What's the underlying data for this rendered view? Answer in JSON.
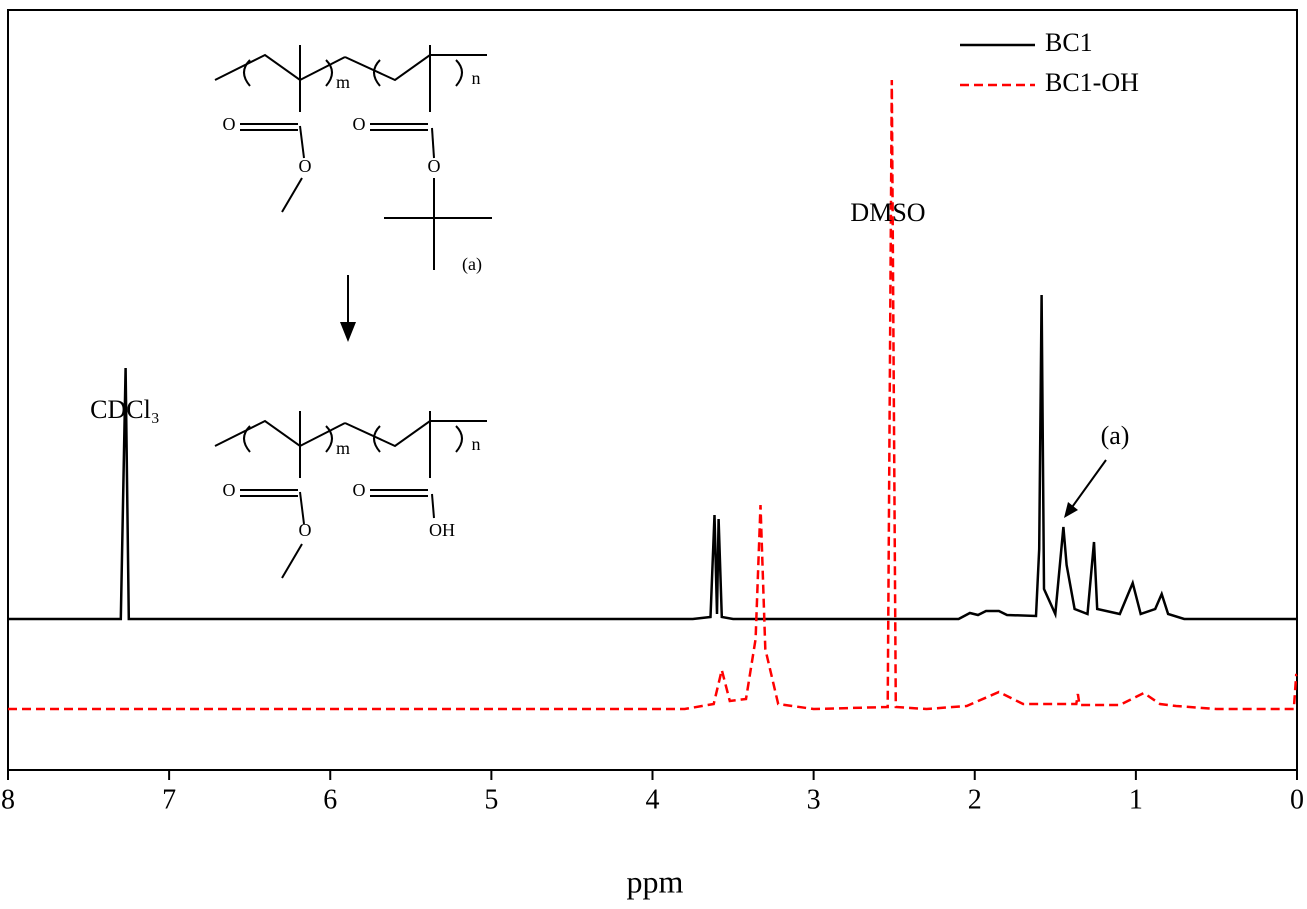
{
  "chart_data": {
    "type": "line",
    "x_label": "ppm",
    "xlim": [
      8,
      0
    ],
    "xticks": [
      0,
      1,
      2,
      3,
      4,
      5,
      6,
      7,
      8
    ],
    "ylim": [
      -1.51,
      6.09
    ],
    "legend": "top-right",
    "series": [
      {
        "name": "BC1",
        "color": "#000000",
        "dash": "solid",
        "x": [
          8.0,
          7.3,
          7.27,
          7.25,
          3.75,
          3.64,
          3.615,
          3.6,
          3.59,
          3.57,
          3.5,
          2.1,
          2.03,
          1.98,
          1.93,
          1.85,
          1.8,
          1.62,
          1.6,
          1.585,
          1.57,
          1.5,
          1.45,
          1.43,
          1.38,
          1.3,
          1.26,
          1.24,
          1.1,
          1.02,
          0.97,
          0.88,
          0.84,
          0.8,
          0.7,
          0.0
        ],
        "values": [
          0,
          0,
          2.51,
          0,
          0,
          0.02,
          1.04,
          0.05,
          1.0,
          0.02,
          0,
          0,
          0.06,
          0.04,
          0.08,
          0.08,
          0.04,
          0.03,
          0.7,
          3.24,
          0.3,
          0.05,
          0.92,
          0.54,
          0.1,
          0.05,
          0.77,
          0.1,
          0.05,
          0.36,
          0.05,
          0.1,
          0.25,
          0.05,
          0,
          0
        ]
      },
      {
        "name": "BC1-OH",
        "color": "#ff0000",
        "dash": "dashed",
        "x": [
          8.0,
          3.8,
          3.62,
          3.57,
          3.52,
          3.42,
          3.36,
          3.33,
          3.3,
          3.22,
          3.0,
          2.54,
          2.515,
          2.49,
          2.3,
          2.05,
          1.85,
          1.7,
          1.37,
          1.36,
          1.35,
          1.1,
          0.95,
          0.85,
          0.75,
          0.5,
          0.02,
          0.005,
          0.0
        ],
        "values": [
          -0.9,
          -0.9,
          -0.85,
          -0.51,
          -0.82,
          -0.8,
          -0.2,
          1.14,
          -0.3,
          -0.85,
          -0.9,
          -0.88,
          5.39,
          -0.88,
          -0.9,
          -0.87,
          -0.73,
          -0.85,
          -0.85,
          -0.75,
          -0.86,
          -0.86,
          -0.74,
          -0.85,
          -0.87,
          -0.9,
          -0.9,
          -0.56,
          -0.56
        ]
      }
    ],
    "annotations": [
      "CDCl₃",
      "DMSO",
      "(a)"
    ],
    "structure_labels": [
      "m",
      "n",
      "O",
      "O",
      "O",
      "O",
      "(a)",
      "m",
      "n",
      "O",
      "O",
      "O",
      "OH"
    ]
  }
}
